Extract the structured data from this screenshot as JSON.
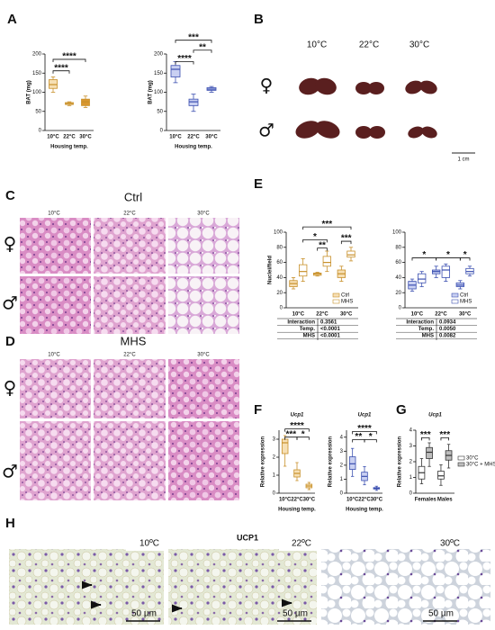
{
  "panel_labels": [
    "A",
    "B",
    "C",
    "D",
    "E",
    "F",
    "G",
    "H"
  ],
  "B": {
    "temps": [
      "10°C",
      "22°C",
      "30°C"
    ],
    "rows": [
      "♀",
      "♂"
    ],
    "scale": "1 cm"
  },
  "C": {
    "title": "Ctrl",
    "temps": [
      "10°C",
      "22°C",
      "30°C"
    ],
    "rows": [
      "♀",
      "♂"
    ]
  },
  "D": {
    "title": "MHS",
    "temps": [
      "10°C",
      "22°C",
      "30°C"
    ],
    "rows": [
      "♀",
      "♂"
    ]
  },
  "H": {
    "title": "UCP1",
    "temps": [
      "10ºC",
      "22ºC",
      "30ºC"
    ],
    "scale": "50 µm"
  },
  "chart_data": [
    {
      "type": "box",
      "ylabel": "BAT (mg)",
      "xlabel": "Housing temp.",
      "categories": [
        "10°C",
        "22°C",
        "30°C"
      ],
      "ylim": [
        0,
        200
      ],
      "yticks": [
        0,
        50,
        100,
        150,
        200
      ],
      "series": [
        {
          "color": "#c8902a",
          "fills": [
            "#f6dfb4",
            "#f0c985",
            "#d9962e"
          ],
          "boxes": [
            [
              100,
              110,
              120,
              133,
              140
            ],
            [
              65,
              68,
              70,
              73,
              75
            ],
            [
              60,
              65,
              75,
              82,
              90
            ]
          ]
        }
      ],
      "annotations": [
        "****",
        "****"
      ]
    },
    {
      "type": "box",
      "ylabel": "BAT (mg)",
      "xlabel": "Housing temp.",
      "categories": [
        "10°C",
        "22°C",
        "30°C"
      ],
      "ylim": [
        0,
        200
      ],
      "yticks": [
        0,
        50,
        100,
        150,
        200
      ],
      "series": [
        {
          "color": "#3b4fb0",
          "fill": "#c9d0f2",
          "boxes": [
            [
              125,
              140,
              160,
              170,
              180
            ],
            [
              50,
              65,
              75,
              82,
              95
            ],
            [
              100,
              105,
              108,
              112,
              115
            ]
          ]
        }
      ],
      "annotations": [
        "****",
        "**",
        "***"
      ]
    },
    {
      "type": "box",
      "ylabel": "Nuclei/field",
      "categories": [
        "10°C",
        "22°C",
        "30°C"
      ],
      "ylim": [
        0,
        100
      ],
      "yticks": [
        0,
        20,
        40,
        60,
        80,
        100
      ],
      "legend": "lower right",
      "series": [
        {
          "name": "Ctrl",
          "color": "#c8902a",
          "fill": "#f6dfb4",
          "boxes": [
            [
              25,
              28,
              32,
              36,
              40
            ],
            [
              42,
              43,
              45,
              46,
              47
            ],
            [
              35,
              40,
              45,
              50,
              55
            ]
          ]
        },
        {
          "name": "MHS",
          "color": "#c8902a",
          "fill": "#ffffff",
          "boxes": [
            [
              35,
              42,
              48,
              57,
              65
            ],
            [
              48,
              55,
              60,
              68,
              75
            ],
            [
              62,
              67,
              70,
              75,
              80
            ]
          ]
        }
      ],
      "annotations": [
        "***",
        "*",
        "**",
        "***"
      ],
      "stats": [
        [
          "Interaction",
          "0.3561"
        ],
        [
          "Temp.",
          "<0.0001"
        ],
        [
          "MHS",
          "<0.0001"
        ]
      ]
    },
    {
      "type": "box",
      "categories": [
        "10°C",
        "22°C",
        "30°C"
      ],
      "ylim": [
        0,
        100
      ],
      "yticks": [
        0,
        20,
        40,
        60,
        80,
        100
      ],
      "legend": "lower right",
      "series": [
        {
          "name": "Ctrl",
          "color": "#3b4fb0",
          "fill": "#c9d0f2",
          "boxes": [
            [
              22,
              25,
              30,
              35,
              38
            ],
            [
              40,
              45,
              48,
              50,
              55
            ],
            [
              25,
              28,
              30,
              33,
              36
            ]
          ]
        },
        {
          "name": "MHS",
          "color": "#3b4fb0",
          "fill": "#ffffff",
          "boxes": [
            [
              28,
              33,
              38,
              45,
              48
            ],
            [
              35,
              40,
              50,
              55,
              58
            ],
            [
              42,
              45,
              48,
              52,
              55
            ]
          ]
        }
      ],
      "annotations": [
        "*",
        "*",
        "*"
      ],
      "stats": [
        [
          "Interaction",
          "0.0934"
        ],
        [
          "Temp.",
          "0.0050"
        ],
        [
          "MHS",
          "0.0082"
        ]
      ]
    },
    {
      "type": "box",
      "title": "Ucp1",
      "ylabel": "Relative expression",
      "xlabel": "Housing temp.",
      "categories": [
        "10°C",
        "22°C",
        "30°C"
      ],
      "ylim": [
        0,
        3.5
      ],
      "yticks": [
        0,
        1,
        2,
        3
      ],
      "series": [
        {
          "color": "#c8902a",
          "fill": "#f6dfb4",
          "boxes": [
            [
              1.5,
              2.2,
              2.8,
              3.0,
              3.2
            ],
            [
              0.7,
              0.9,
              1.1,
              1.3,
              1.7
            ],
            [
              0.2,
              0.3,
              0.4,
              0.5,
              0.6
            ]
          ]
        }
      ],
      "annotations": [
        "****",
        "***",
        "*"
      ]
    },
    {
      "type": "box",
      "title": "Ucp1",
      "ylabel": "Relative expression",
      "xlabel": "Housing temp.",
      "categories": [
        "10°C",
        "22°C",
        "30°C"
      ],
      "ylim": [
        0,
        4.5
      ],
      "yticks": [
        0,
        1,
        2,
        3,
        4
      ],
      "series": [
        {
          "color": "#3b4fb0",
          "fill": "#c9d0f2",
          "boxes": [
            [
              1.2,
              1.7,
              2.1,
              2.6,
              3.2
            ],
            [
              0.6,
              0.9,
              1.2,
              1.5,
              1.9
            ],
            [
              0.2,
              0.3,
              0.35,
              0.4,
              0.5
            ]
          ]
        }
      ],
      "annotations": [
        "****",
        "**",
        "*"
      ]
    },
    {
      "type": "box",
      "title": "Ucp1",
      "ylabel": "Relative expression",
      "categories": [
        "Females",
        "Males"
      ],
      "ylim": [
        0,
        4
      ],
      "yticks": [
        0,
        1,
        2,
        3,
        4
      ],
      "legend": "center right",
      "series": [
        {
          "name": "30°C",
          "color": "#333333",
          "fill": "#ffffff",
          "boxes": [
            [
              0.6,
              0.9,
              1.3,
              1.7,
              2.2
            ],
            [
              0.5,
              0.9,
              1.1,
              1.4,
              1.8
            ]
          ]
        },
        {
          "name": "30°C + MHS",
          "color": "#333333",
          "fill": "#bdbdbd",
          "boxes": [
            [
              1.7,
              2.2,
              2.6,
              2.9,
              3.2
            ],
            [
              1.6,
              2.1,
              2.4,
              2.7,
              3.1
            ]
          ]
        }
      ],
      "annotations": [
        "***",
        "***"
      ]
    }
  ]
}
